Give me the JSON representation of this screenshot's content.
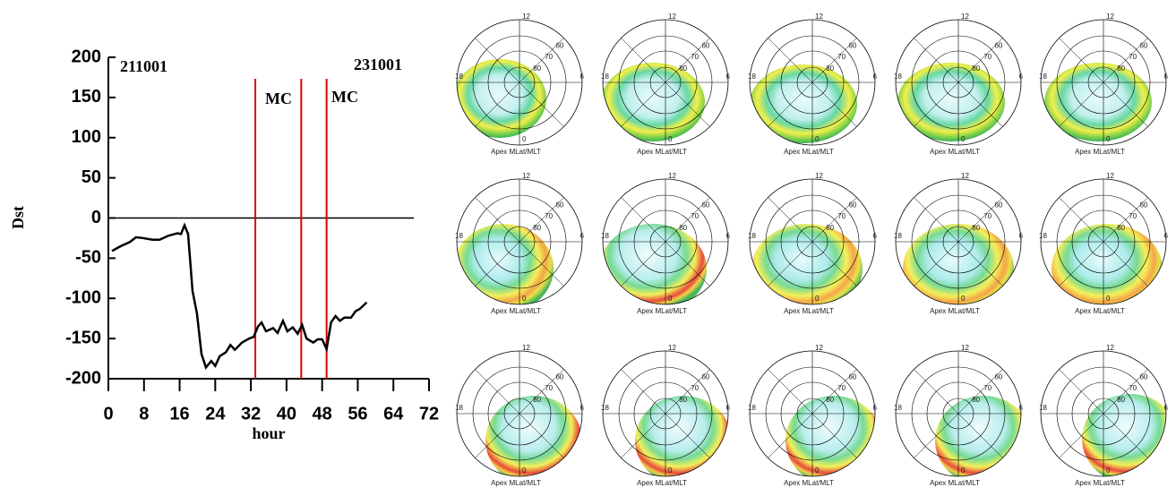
{
  "chart_data": {
    "type": "line",
    "x": [
      0.8,
      2.8,
      4.8,
      6.2,
      7.8,
      9.9,
      11.5,
      13.5,
      15.5,
      16.3,
      17.1,
      17.9,
      18.9,
      19.9,
      20.9,
      21.9,
      23.1,
      24,
      25,
      26.4,
      27.4,
      28.4,
      30,
      31.6,
      32.6,
      33.6,
      34.4,
      35.4,
      37,
      38,
      39.2,
      40.2,
      41.4,
      42.5,
      43.5,
      44.5,
      46,
      47,
      48,
      49,
      50,
      51,
      52,
      53,
      54.5,
      55.5,
      56.5,
      58
    ],
    "values": [
      -41,
      -35,
      -30,
      -24,
      -25,
      -27,
      -27,
      -22,
      -19,
      -20,
      -9,
      -20,
      -91,
      -119,
      -169,
      -186,
      -178,
      -184,
      -172,
      -167,
      -158,
      -164,
      -155,
      -150,
      -148,
      -135,
      -130,
      -141,
      -137,
      -143,
      -128,
      -141,
      -136,
      -144,
      -133,
      -150,
      -155,
      -151,
      -151,
      -163,
      -130,
      -122,
      -128,
      -124,
      -124,
      -116,
      -113,
      -105
    ],
    "color": "#000000",
    "xlim": [
      0,
      72
    ],
    "xticks": [
      0,
      8,
      16,
      24,
      32,
      40,
      48,
      56,
      64,
      72
    ],
    "ylim": [
      -200,
      200
    ],
    "yticks": [
      -200,
      -150,
      -100,
      -50,
      0,
      50,
      100,
      150,
      200
    ],
    "xlabel": "hour",
    "ylabel": "Dst",
    "zero_line": {
      "value": 0,
      "x_end": 68.6
    },
    "vlines": {
      "x": [
        33,
        43.3,
        49
      ],
      "color": "#e00000"
    },
    "annotations": [
      "211001",
      "231001",
      "MC",
      "MC"
    ]
  },
  "polar_panels": {
    "mlt_labels": {
      "top": "12",
      "left": "18",
      "right": "6",
      "bottom": "0"
    },
    "lat_labels": [
      "60",
      "70",
      "80"
    ],
    "caption": "Apex MLat/MLT"
  }
}
